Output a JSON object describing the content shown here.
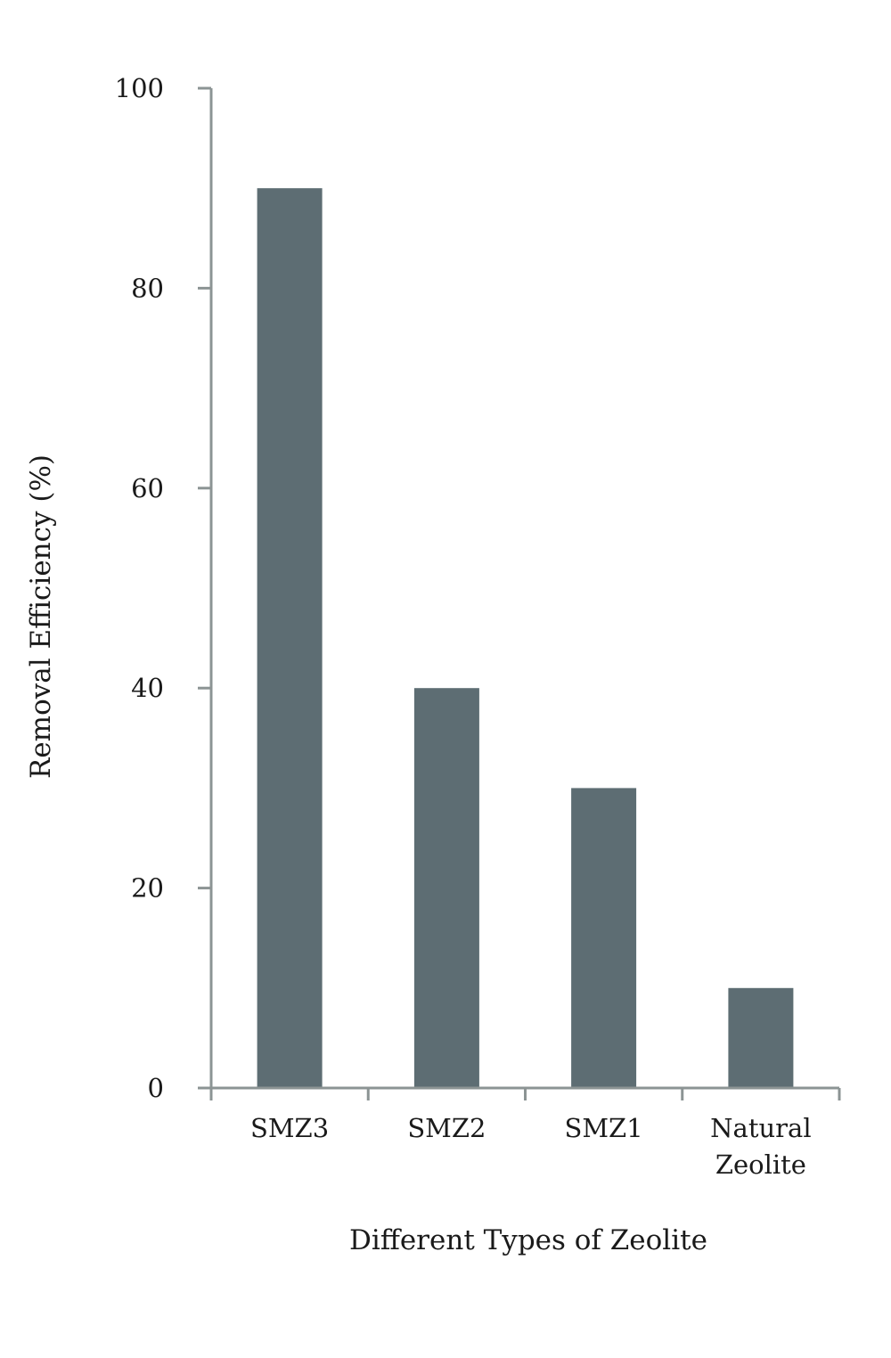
{
  "chart_data": {
    "type": "bar",
    "categories": [
      "SMZ3",
      "SMZ2",
      "SMZ1",
      "Natural Zeolite"
    ],
    "category_label_lines": [
      [
        "SMZ3"
      ],
      [
        "SMZ2"
      ],
      [
        "SMZ1"
      ],
      [
        "Natural",
        "Zeolite"
      ]
    ],
    "values": [
      90,
      40,
      30,
      10
    ],
    "xlabel": "Different Types of Zeolite",
    "ylabel": "Removal Efficiency (%)",
    "ylim": [
      0,
      100
    ],
    "yticks": [
      0,
      20,
      40,
      60,
      80,
      100
    ],
    "grid": false,
    "bar_color": "#5d6d73",
    "axis_color": "#8c9494"
  }
}
